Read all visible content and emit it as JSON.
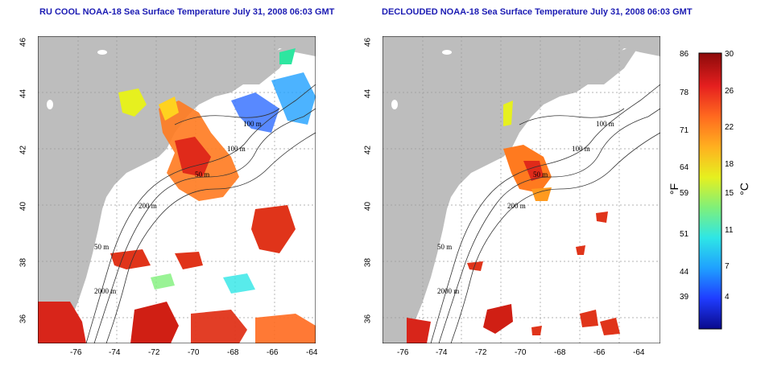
{
  "left_panel": {
    "title": "RU COOL NOAA-18 Sea Surface Temperature July 31, 2008 06:03 GMT"
  },
  "right_panel": {
    "title": "DECLOUDED NOAA-18 Sea Surface Temperature July 31, 2008 06:03 GMT"
  },
  "axes": {
    "x_ticks": [
      "-76",
      "-74",
      "-72",
      "-70",
      "-68",
      "-66",
      "-64"
    ],
    "y_ticks": [
      "46",
      "44",
      "42",
      "40",
      "38",
      "36"
    ]
  },
  "contour_labels_left": [
    "100 m",
    "100 m",
    "50 m",
    "200 m",
    "50 m",
    "2000 m"
  ],
  "contour_labels_right": [
    "100 m",
    "100 m",
    "50 m",
    "200 m",
    "50 m",
    "2000 m"
  ],
  "colorbar": {
    "fahrenheit_labels": [
      "86",
      "78",
      "71",
      "64",
      "59",
      "51",
      "44",
      "39"
    ],
    "celsius_labels": [
      "30",
      "26",
      "22",
      "18",
      "15",
      "11",
      "7",
      "4"
    ],
    "f_unit": "°F",
    "c_unit": "°C",
    "colors": [
      "#0a0a8c",
      "#1f3cff",
      "#1fa0ff",
      "#2ee6e6",
      "#7ff07a",
      "#e6f01f",
      "#ffb01f",
      "#ff6a1f",
      "#e61f1f",
      "#8c0a0a"
    ]
  },
  "colors": {
    "land": "#bdbdbd",
    "ocean": "#ffffff",
    "title": "#1b1bb3",
    "grid": "#9a9a9a"
  }
}
